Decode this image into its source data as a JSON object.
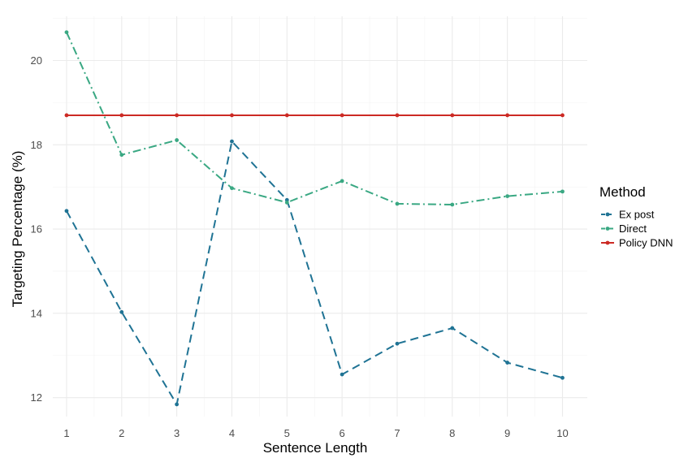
{
  "chart_data": {
    "type": "line",
    "xlabel": "Sentence Length",
    "ylabel": "Targeting Percentage (%)",
    "x": [
      1,
      2,
      3,
      4,
      5,
      6,
      7,
      8,
      9,
      10
    ],
    "x_ticks": [
      "1",
      "2",
      "3",
      "4",
      "5",
      "6",
      "7",
      "8",
      "9",
      "10"
    ],
    "xlim": [
      0.75,
      10.45
    ],
    "ylim": [
      11.55,
      21.05
    ],
    "y_major_ticks": [
      12,
      14,
      16,
      18,
      20
    ],
    "y_tick_labels": [
      "12",
      "14",
      "16",
      "18",
      "20"
    ],
    "y_minor_ticks": [
      13,
      15,
      17,
      19,
      21
    ],
    "grid": true,
    "legend": {
      "title": "Method",
      "position": "right"
    },
    "series": [
      {
        "name": "Ex post",
        "color": "#1f7394",
        "line_style": "dashed",
        "values": [
          16.43,
          14.03,
          11.84,
          18.08,
          16.69,
          12.55,
          13.28,
          13.65,
          12.83,
          12.47
        ]
      },
      {
        "name": "Direct",
        "color": "#3aa883",
        "line_style": "dashdot",
        "values": [
          20.67,
          17.76,
          18.11,
          16.97,
          16.63,
          17.14,
          16.6,
          16.58,
          16.78,
          16.89
        ]
      },
      {
        "name": "Policy DNN",
        "color": "#cc2a24",
        "line_style": "solid",
        "values": [
          18.7,
          18.7,
          18.7,
          18.7,
          18.7,
          18.7,
          18.7,
          18.7,
          18.7,
          18.7
        ]
      }
    ]
  }
}
